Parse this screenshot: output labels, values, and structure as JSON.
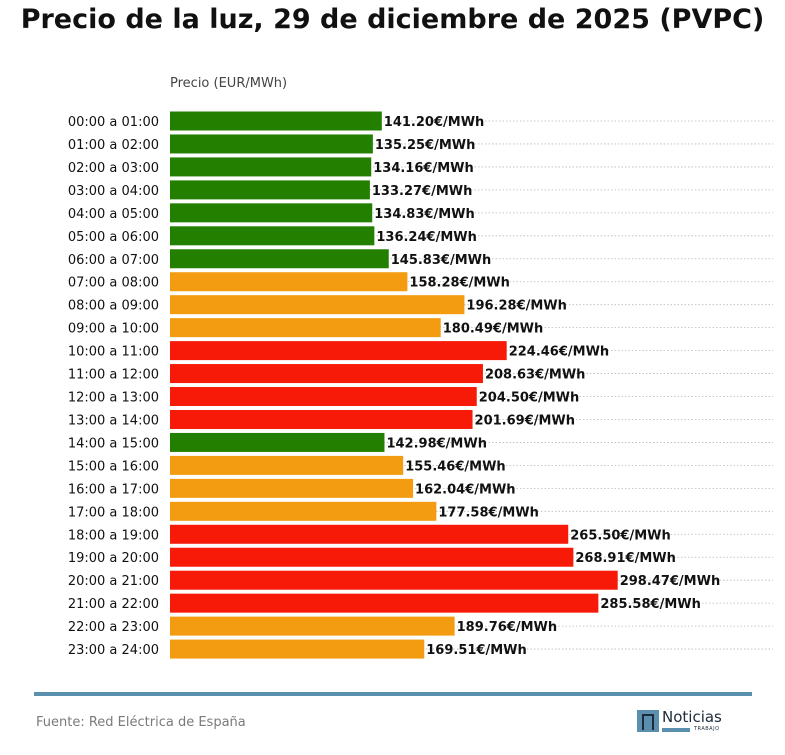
{
  "title": "Precio de la luz, 29 de diciembre de 2025 (PVPC)",
  "source": "Fuente: Red Eléctrica de España",
  "logo": {
    "word": "Noticias",
    "sub": "TRABAJO"
  },
  "colors": {
    "low": "#237f00",
    "mid": "#f39c12",
    "high": "#f81a08",
    "rule": "#5b8fae"
  },
  "chart_data": {
    "type": "bar",
    "orientation": "horizontal",
    "axis_label": "Precio (EUR/MWh)",
    "value_suffix": "€/MWh",
    "xlim": [
      0,
      300
    ],
    "grid": "dotted horizontal",
    "categories": [
      "00:00 a 01:00",
      "01:00 a 02:00",
      "02:00 a 03:00",
      "03:00 a 04:00",
      "04:00 a 05:00",
      "05:00 a 06:00",
      "06:00 a 07:00",
      "07:00 a 08:00",
      "08:00 a 09:00",
      "09:00 a 10:00",
      "10:00 a 11:00",
      "11:00 a 12:00",
      "12:00 a 13:00",
      "13:00 a 14:00",
      "14:00 a 15:00",
      "15:00 a 16:00",
      "16:00 a 17:00",
      "17:00 a 18:00",
      "18:00 a 19:00",
      "19:00 a 20:00",
      "20:00 a 21:00",
      "21:00 a 22:00",
      "22:00 a 23:00",
      "23:00 a 24:00"
    ],
    "values": [
      141.2,
      135.25,
      134.16,
      133.27,
      134.83,
      136.24,
      145.83,
      158.28,
      196.28,
      180.49,
      224.46,
      208.63,
      204.5,
      201.69,
      142.98,
      155.46,
      162.04,
      177.58,
      265.5,
      268.91,
      298.47,
      285.58,
      189.76,
      169.51
    ],
    "levels": [
      "low",
      "low",
      "low",
      "low",
      "low",
      "low",
      "low",
      "mid",
      "mid",
      "mid",
      "high",
      "high",
      "high",
      "high",
      "low",
      "mid",
      "mid",
      "mid",
      "high",
      "high",
      "high",
      "high",
      "mid",
      "mid"
    ]
  }
}
